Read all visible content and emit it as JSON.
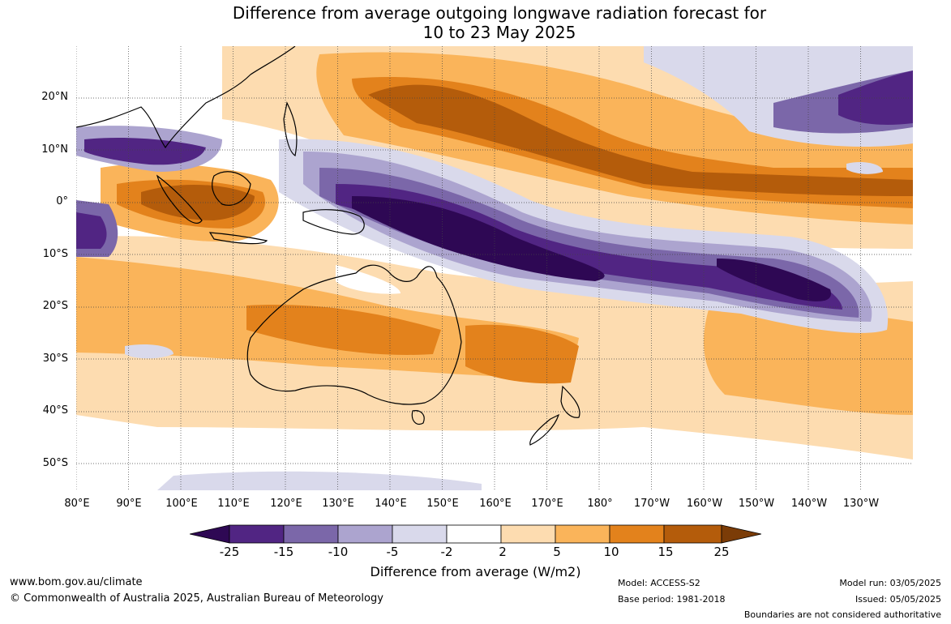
{
  "title_line1": "Difference from average outgoing longwave radiation forecast for",
  "title_line2": "10 to 23 May 2025",
  "lat_labels": [
    "20°N",
    "10°N",
    "0°",
    "10°S",
    "20°S",
    "30°S",
    "40°S",
    "50°S"
  ],
  "lon_labels": [
    "80°E",
    "90°E",
    "100°E",
    "110°E",
    "120°E",
    "130°E",
    "140°E",
    "150°E",
    "160°E",
    "170°E",
    "180°",
    "170°W",
    "160°W",
    "150°W",
    "140°W",
    "130°W"
  ],
  "colorbar": {
    "labels": [
      "-25",
      "-15",
      "-10",
      "-5",
      "-2",
      "2",
      "5",
      "10",
      "15",
      "25"
    ],
    "colors": [
      "#2e0854",
      "#512583",
      "#7b67a9",
      "#aca4cf",
      "#d9d9eb",
      "#ffffff",
      "#fddcb0",
      "#fab45a",
      "#e3821c",
      "#b45c0b",
      "#7b3c07"
    ],
    "title": "Difference from average (W/m2)"
  },
  "footer": {
    "website": "www.bom.gov.au/climate",
    "copyright": "© Commonwealth of Australia 2025, Australian Bureau of Meteorology",
    "model": "Model: ACCESS-S2",
    "base_period": "Base period: 1981-2018",
    "model_run": "Model run: 03/05/2025",
    "issued": "Issued: 05/05/2025",
    "disclaimer": "Boundaries are not considered authoritative"
  }
}
